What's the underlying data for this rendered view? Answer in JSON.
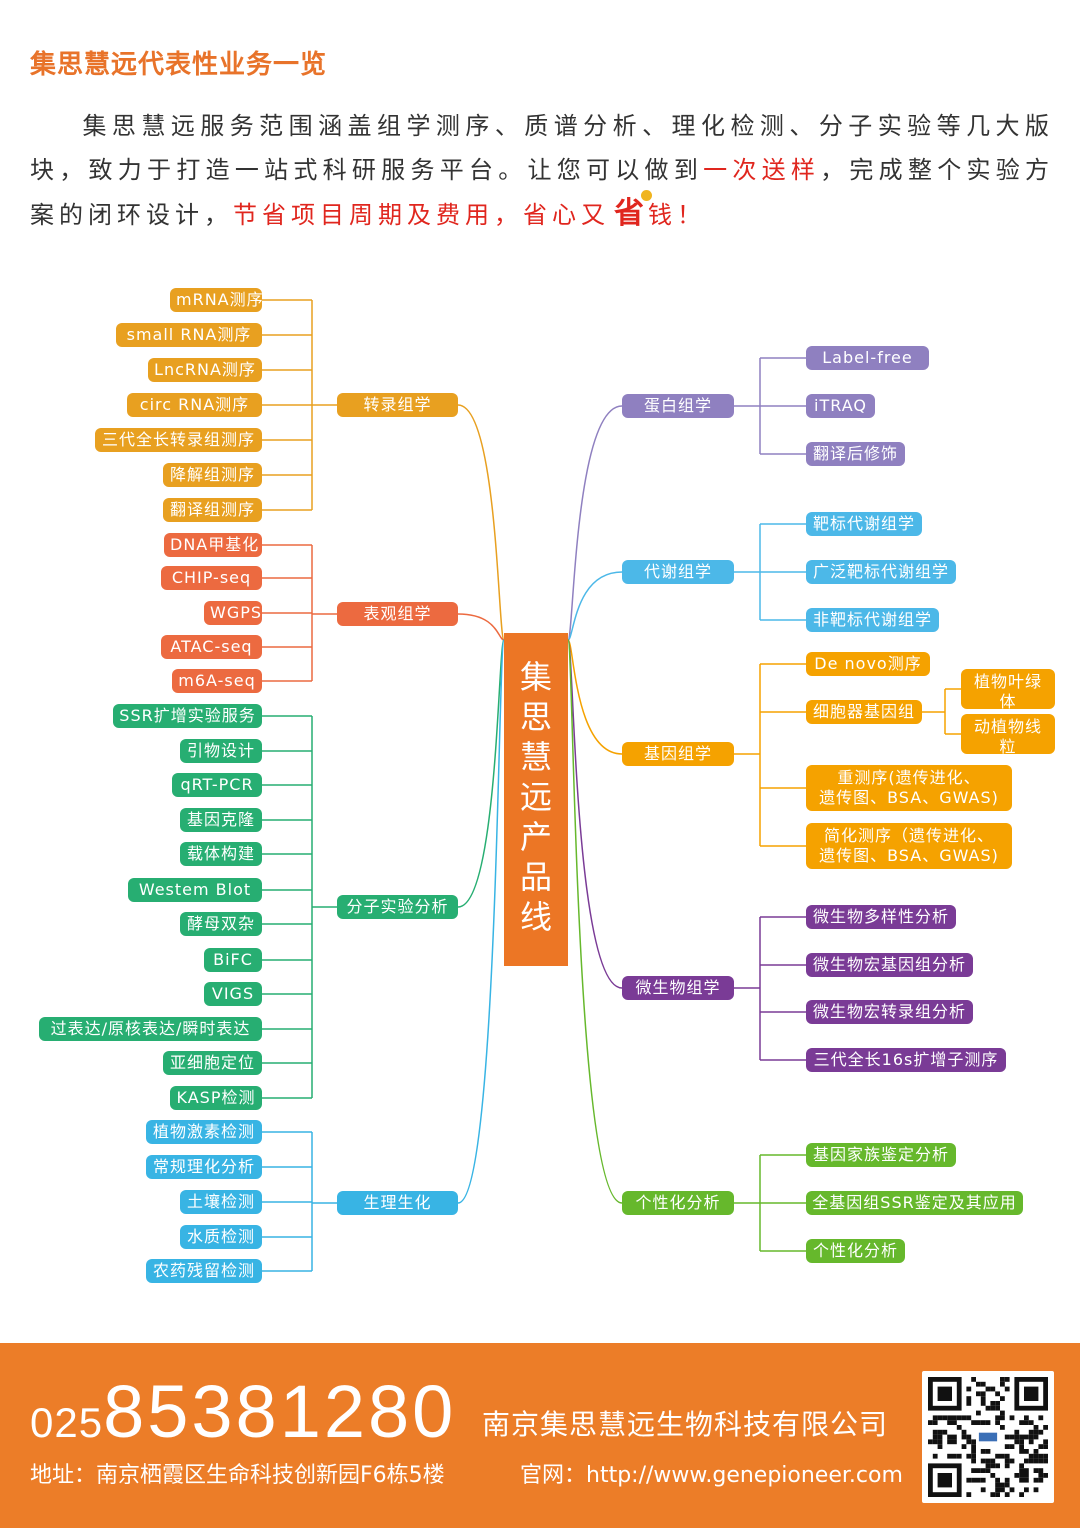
{
  "header": {
    "title": "集思慧远代表性业务一览",
    "intro": {
      "part1": "集思慧远服务范围涵盖组学测序、质谱分析、理化检测、分子实验等几大版块，致力于打造一站式科研服务平台。让您可以做到",
      "highlight1": "一次送样",
      "part2": "，完成整个实验方案的闭环设计，",
      "highlight2": "节省项目周期及费用，省心又",
      "icon_char": "省",
      "highlight3": "钱！"
    }
  },
  "center": {
    "chars": [
      "集",
      "思",
      "慧",
      "远",
      "产",
      "品",
      "线"
    ]
  },
  "colors": {
    "orange": "#e8a020",
    "coral": "#ec6a40",
    "green": "#27ae72",
    "blue": "#38b4e4",
    "purple": "#8f80c0",
    "sky": "#4cb8e8",
    "amber": "#f5a200",
    "violet": "#7a3b96",
    "lime": "#66b82c"
  },
  "left_groups": [
    {
      "label": "转录组学",
      "color": "orange",
      "items": [
        "mRNA测序",
        "small RNA测序",
        "LncRNA测序",
        "circ RNA测序",
        "三代全长转录组测序",
        "降解组测序",
        "翻译组测序"
      ]
    },
    {
      "label": "表观组学",
      "color": "coral",
      "items": [
        "DNA甲基化",
        "CHIP-seq",
        "WGPS",
        "ATAC-seq",
        "m6A-seq"
      ]
    },
    {
      "label": "分子实验分析",
      "color": "green",
      "items": [
        "SSR扩增实验服务",
        "引物设计",
        "qRT-PCR",
        "基因克隆",
        "载体构建",
        "Westem Blot",
        "酵母双杂",
        "BiFC",
        "VIGS",
        "过表达/原核表达/瞬时表达",
        "亚细胞定位",
        "KASP检测"
      ]
    },
    {
      "label": "生理生化",
      "color": "blue",
      "items": [
        "植物激素检测",
        "常规理化分析",
        "土壤检测",
        "水质检测",
        "农药残留检测"
      ]
    }
  ],
  "right_groups": [
    {
      "label": "蛋白组学",
      "color": "purple",
      "items": [
        {
          "text": "Label-free"
        },
        {
          "text": "iTRAQ"
        },
        {
          "text": "翻译后修饰"
        }
      ]
    },
    {
      "label": "代谢组学",
      "color": "sky",
      "items": [
        {
          "text": "靶标代谢组学"
        },
        {
          "text": "广泛靶标代谢组学"
        },
        {
          "text": "非靶标代谢组学"
        }
      ]
    },
    {
      "label": "基因组学",
      "color": "amber",
      "items": [
        {
          "text": "De novo测序"
        },
        {
          "text": "细胞器基因组",
          "children": [
            {
              "text": "植物叶绿体",
              "text2": "基因组"
            },
            {
              "text": "动植物线粒",
              "text2": "体基因组"
            }
          ]
        },
        {
          "text": "重测序(遗传进化、",
          "text2": "遗传图、BSA、GWAS)"
        },
        {
          "text": "简化测序（遗传进化、",
          "text2": "遗传图、BSA、GWAS)"
        }
      ]
    },
    {
      "label": "微生物组学",
      "color": "violet",
      "items": [
        {
          "text": "微生物多样性分析"
        },
        {
          "text": "微生物宏基因组分析"
        },
        {
          "text": "微生物宏转录组分析"
        },
        {
          "text": "三代全长16s扩增子测序"
        }
      ]
    },
    {
      "label": "个性化分析",
      "color": "lime",
      "items": [
        {
          "text": "基因家族鉴定分析"
        },
        {
          "text": "全基因组SSR鉴定及其应用"
        },
        {
          "text": "个性化分析"
        }
      ]
    }
  ],
  "footer": {
    "phone_prefix": "025",
    "phone_main": "85381280",
    "company": "南京集思慧远生物科技有限公司",
    "address": "地址：南京栖霞区生命科技创新园F6栋5楼",
    "website": "官网：http://www.genepioneer.com"
  }
}
